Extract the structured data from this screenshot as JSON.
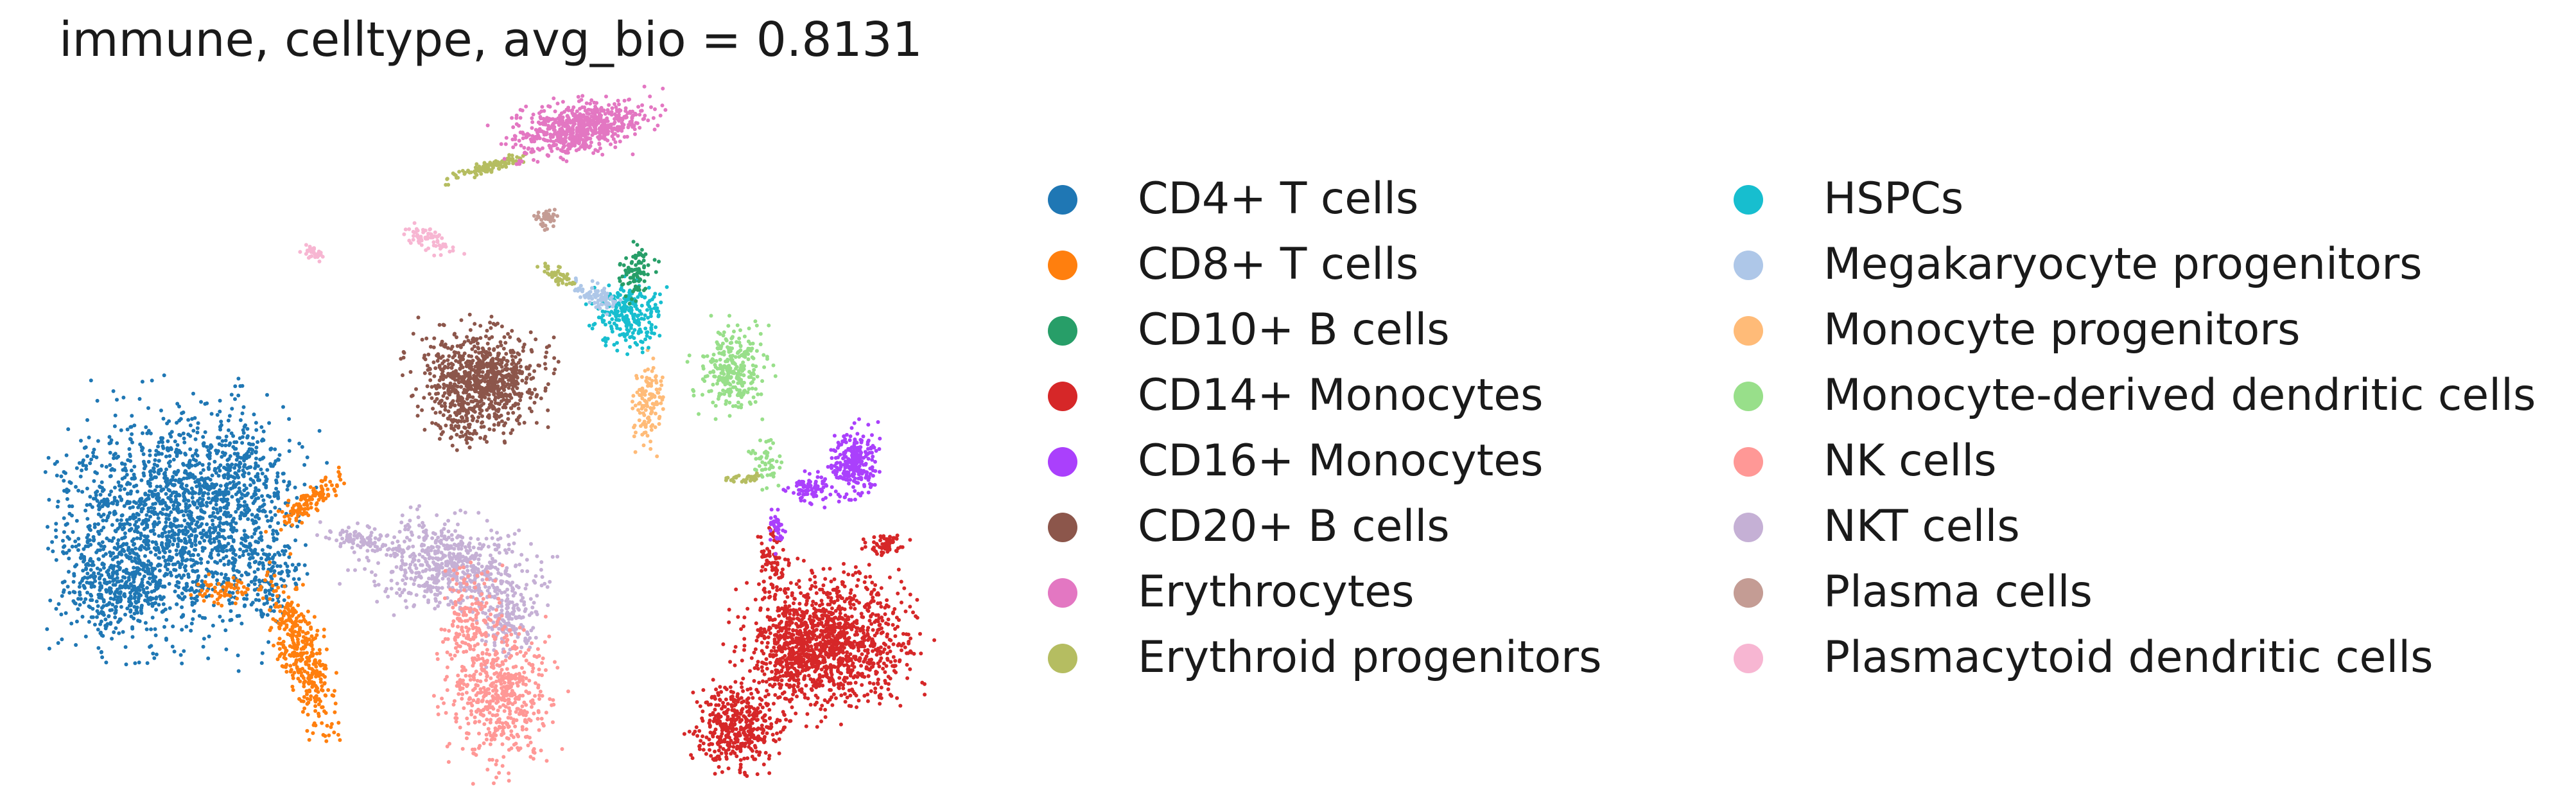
{
  "chart_data": {
    "type": "scatter",
    "title": "immune, celltype, avg_bio = 0.8131",
    "axes_visible": false,
    "legend": {
      "placement": "right",
      "columns": 2,
      "marker": "circle"
    },
    "categories": [
      "CD4+ T cells",
      "CD8+ T cells",
      "CD10+ B cells",
      "CD14+ Monocytes",
      "CD16+ Monocytes",
      "CD20+ B cells",
      "Erythrocytes",
      "Erythroid progenitors",
      "HSPCs",
      "Megakaryocyte progenitors",
      "Monocyte progenitors",
      "Monocyte-derived dendritic cells",
      "NK cells",
      "NKT cells",
      "Plasma cells",
      "Plasmacytoid dendritic cells"
    ],
    "colors": [
      "#1f77b4",
      "#ff7f0e",
      "#279e68",
      "#d62728",
      "#aa40fc",
      "#8c564b",
      "#e377c2",
      "#b5bd61",
      "#17becf",
      "#aec7e8",
      "#ffbb78",
      "#98df8a",
      "#ff9896",
      "#c5b0d5",
      "#c49c94",
      "#f7b6d2"
    ]
  }
}
